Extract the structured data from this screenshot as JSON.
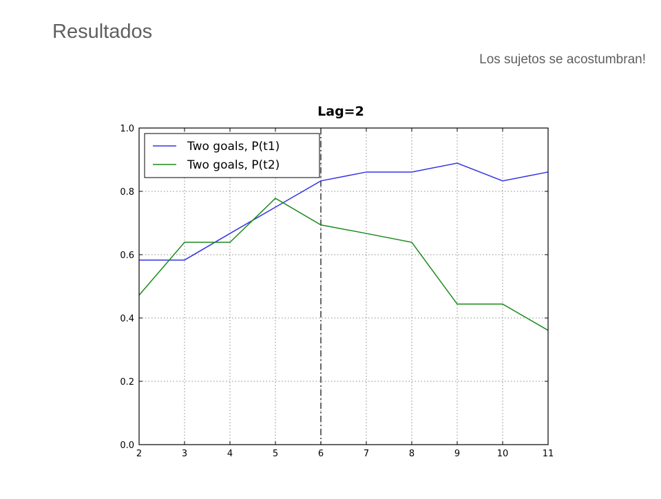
{
  "slide": {
    "title": "Resultados",
    "subtitle": "Los sujetos se acostumbran!"
  },
  "colors": {
    "series_1": "#3333e6",
    "series_2": "#1a8a1a",
    "text": "#5f5f5f"
  },
  "chart_data": {
    "type": "line",
    "title": "Lag=2",
    "xlabel": "",
    "ylabel": "",
    "xlim": [
      2,
      11
    ],
    "ylim": [
      0.0,
      1.0
    ],
    "x_ticks": [
      "2",
      "3",
      "4",
      "5",
      "6",
      "7",
      "8",
      "9",
      "10",
      "11"
    ],
    "y_ticks": [
      "0.0",
      "0.2",
      "0.4",
      "0.6",
      "0.8",
      "1.0"
    ],
    "grid": true,
    "legend_position": "top-left",
    "vertical_reference_line": 6,
    "x": [
      2,
      3,
      4,
      5,
      6,
      7,
      8,
      9,
      10,
      11
    ],
    "series": [
      {
        "name": "Two goals, P(t1)",
        "color": "#3333e6",
        "values": [
          0.583,
          0.583,
          0.667,
          0.75,
          0.833,
          0.861,
          0.861,
          0.889,
          0.833,
          0.861
        ]
      },
      {
        "name": "Two goals, P(t2)",
        "color": "#1a8a1a",
        "values": [
          0.472,
          0.639,
          0.639,
          0.778,
          0.694,
          0.667,
          0.639,
          0.444,
          0.444,
          0.361
        ]
      }
    ]
  }
}
